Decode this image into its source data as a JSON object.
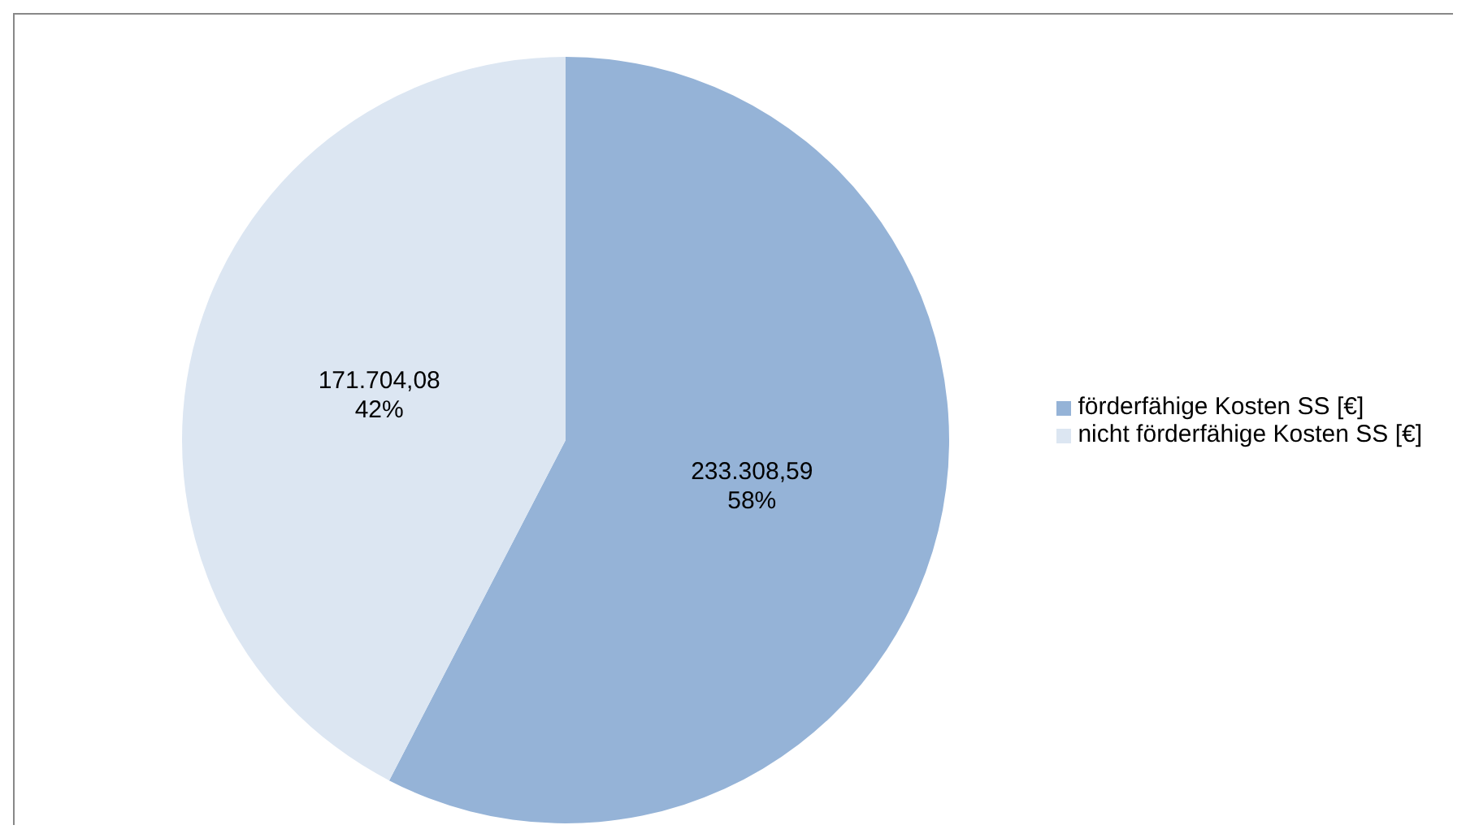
{
  "chart_data": {
    "type": "pie",
    "categories": [
      "förderfähige Kosten SS [€]",
      "nicht förderfähige Kosten SS [€]"
    ],
    "values": [
      233308.59,
      171704.08
    ],
    "colors": [
      "#95b3d7",
      "#dce6f2"
    ],
    "value_labels": [
      "233.308,59\n58%",
      "171.704,08\n42%"
    ],
    "legend": "right"
  }
}
